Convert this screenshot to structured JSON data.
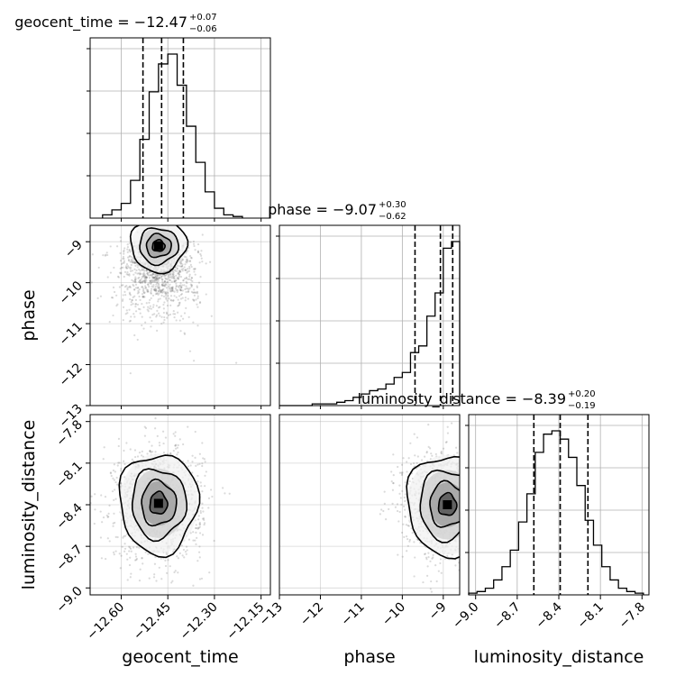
{
  "chart_data": {
    "type": "corner",
    "grid": true,
    "parameters": [
      {
        "name": "geocent_time",
        "xlabel": "geocent_time",
        "title_main": "geocent_time = −12.47",
        "title_plus": "+0.07",
        "title_minus": "−0.06",
        "median": -12.47,
        "q_low": -12.53,
        "q_high": -12.4,
        "range": [
          -12.7,
          -12.12
        ],
        "ticks": [
          -12.6,
          -12.45,
          -12.3,
          -12.15
        ],
        "tick_labels": [
          "−12.60",
          "−12.45",
          "−12.30",
          "−12.15"
        ],
        "hist_bins": [
          -12.66,
          -12.63,
          -12.6,
          -12.57,
          -12.54,
          -12.51,
          -12.48,
          -12.45,
          -12.42,
          -12.39,
          -12.36,
          -12.33,
          -12.3,
          -12.27,
          -12.24,
          -12.21
        ],
        "hist_counts": [
          0.02,
          0.05,
          0.09,
          0.23,
          0.48,
          0.77,
          0.94,
          1.0,
          0.81,
          0.56,
          0.34,
          0.16,
          0.06,
          0.02,
          0.01
        ]
      },
      {
        "name": "phase",
        "xlabel": "phase",
        "ylabel": "phase",
        "title_main": "phase = −9.07",
        "title_plus": "+0.30",
        "title_minus": "−0.62",
        "median": -9.07,
        "q_low": -9.69,
        "q_high": -8.77,
        "range": [
          -13.0,
          -8.6
        ],
        "ticks": [
          -13,
          -12,
          -11,
          -10,
          -9
        ],
        "tick_labels": [
          "−13",
          "−12",
          "−11",
          "−10",
          "−9"
        ],
        "hist_bins": [
          -13.0,
          -12.8,
          -12.6,
          -12.4,
          -12.2,
          -12.0,
          -11.8,
          -11.6,
          -11.4,
          -11.2,
          -11.0,
          -10.8,
          -10.6,
          -10.4,
          -10.2,
          -10.0,
          -9.8,
          -9.6,
          -9.4,
          -9.2,
          -9.0,
          -8.8,
          -8.6
        ],
        "hist_counts": [
          0.0,
          0.0,
          0.0,
          0.0,
          0.01,
          0.01,
          0.01,
          0.02,
          0.03,
          0.05,
          0.07,
          0.09,
          0.1,
          0.13,
          0.17,
          0.2,
          0.32,
          0.36,
          0.54,
          0.68,
          0.95,
          0.99
        ]
      },
      {
        "name": "luminosity_distance",
        "xlabel": "luminosity_distance",
        "ylabel": "luminosity_distance",
        "title_main": "luminosity_distance = −8.39",
        "title_plus": "+0.20",
        "title_minus": "−0.19",
        "median": -8.39,
        "q_low": -8.58,
        "q_high": -8.19,
        "range": [
          -9.05,
          -7.75
        ],
        "ticks": [
          -9.0,
          -8.7,
          -8.4,
          -8.1,
          -7.8
        ],
        "tick_labels": [
          "−9.0",
          "−8.7",
          "−8.4",
          "−8.1",
          "−7.8"
        ],
        "hist_bins": [
          -9.05,
          -8.99,
          -8.93,
          -8.87,
          -8.81,
          -8.75,
          -8.69,
          -8.63,
          -8.57,
          -8.51,
          -8.45,
          -8.39,
          -8.33,
          -8.27,
          -8.21,
          -8.15,
          -8.09,
          -8.03,
          -7.97,
          -7.91,
          -7.85,
          -7.79
        ],
        "hist_counts": [
          0.01,
          0.02,
          0.04,
          0.09,
          0.17,
          0.27,
          0.44,
          0.61,
          0.86,
          0.97,
          0.99,
          0.94,
          0.83,
          0.66,
          0.45,
          0.3,
          0.17,
          0.09,
          0.04,
          0.02,
          0.01
        ]
      }
    ],
    "correlations": [
      {
        "x": "geocent_time",
        "y": "phase",
        "center": [
          -12.48,
          -9.1
        ],
        "spread": [
          0.05,
          0.35
        ],
        "skew_direction": "tail toward low phase"
      },
      {
        "x": "geocent_time",
        "y": "luminosity_distance",
        "center": [
          -12.48,
          -8.39
        ],
        "spread": [
          0.07,
          0.2
        ]
      },
      {
        "x": "phase",
        "y": "luminosity_distance",
        "center": [
          -8.9,
          -8.4
        ],
        "spread": [
          0.55,
          0.2
        ]
      }
    ]
  }
}
